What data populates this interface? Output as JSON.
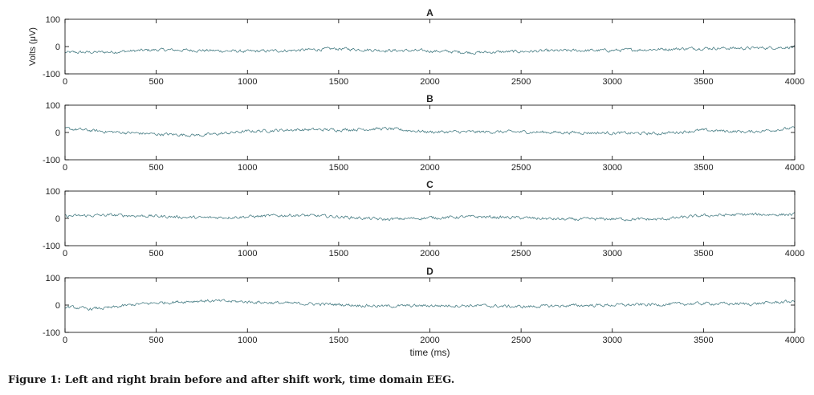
{
  "caption": "Figure 1: Left and right brain before and after shift work, time domain EEG.",
  "colors": {
    "trace": "#4a7f86",
    "axis": "#000000",
    "background": "#ffffff"
  },
  "chart_data": [
    {
      "type": "line",
      "title": "A",
      "xlabel": "",
      "ylabel": "Volts (μV)",
      "xlim": [
        0,
        4000
      ],
      "ylim": [
        -100,
        100
      ],
      "xticks": [
        0,
        500,
        1000,
        1500,
        2000,
        2500,
        3000,
        3500,
        4000
      ],
      "yticks": [
        -100,
        0,
        100
      ],
      "grid": false,
      "series": [
        {
          "x": [
            0,
            250,
            500,
            750,
            1000,
            1250,
            1500,
            1750,
            2000,
            2250,
            2500,
            2750,
            3000,
            3250,
            3500,
            3750,
            4000
          ],
          "y": [
            -22,
            -20,
            -12,
            -14,
            -18,
            -14,
            -8,
            -14,
            -16,
            -22,
            -18,
            -15,
            -14,
            -10,
            -6,
            -6,
            -2
          ]
        }
      ]
    },
    {
      "type": "line",
      "title": "B",
      "xlabel": "",
      "ylabel": "",
      "xlim": [
        0,
        4000
      ],
      "ylim": [
        -100,
        100
      ],
      "xticks": [
        0,
        500,
        1000,
        1500,
        2000,
        2500,
        3000,
        3500,
        4000
      ],
      "yticks": [
        -100,
        0,
        100
      ],
      "grid": false,
      "series": [
        {
          "x": [
            0,
            250,
            500,
            750,
            1000,
            1250,
            1500,
            1750,
            2000,
            2250,
            2500,
            2750,
            3000,
            3250,
            3500,
            3750,
            4000
          ],
          "y": [
            14,
            2,
            -6,
            -10,
            4,
            10,
            10,
            14,
            2,
            2,
            2,
            0,
            -2,
            -4,
            8,
            2,
            16
          ]
        }
      ]
    },
    {
      "type": "line",
      "title": "C",
      "xlabel": "",
      "ylabel": "",
      "xlim": [
        0,
        4000
      ],
      "ylim": [
        -100,
        100
      ],
      "xticks": [
        0,
        500,
        1000,
        1500,
        2000,
        2500,
        3000,
        3500,
        4000
      ],
      "yticks": [
        -100,
        0,
        100
      ],
      "grid": false,
      "series": [
        {
          "x": [
            0,
            250,
            500,
            750,
            1000,
            1250,
            1500,
            1750,
            2000,
            2250,
            2500,
            2750,
            3000,
            3250,
            3500,
            3750,
            4000
          ],
          "y": [
            8,
            12,
            8,
            2,
            6,
            12,
            6,
            -4,
            2,
            6,
            2,
            -4,
            -2,
            -4,
            10,
            14,
            14
          ]
        }
      ]
    },
    {
      "type": "line",
      "title": "D",
      "xlabel": "time (ms)",
      "ylabel": "",
      "xlim": [
        0,
        4000
      ],
      "ylim": [
        -100,
        100
      ],
      "xticks": [
        0,
        500,
        1000,
        1500,
        2000,
        2500,
        3000,
        3500,
        4000
      ],
      "yticks": [
        -100,
        0,
        100
      ],
      "grid": false,
      "series": [
        {
          "x": [
            0,
            125,
            250,
            375,
            500,
            750,
            1000,
            1250,
            1500,
            1750,
            2000,
            2250,
            2500,
            2750,
            3000,
            3250,
            3500,
            3750,
            4000
          ],
          "y": [
            -6,
            -14,
            -10,
            2,
            8,
            16,
            12,
            6,
            2,
            -4,
            -2,
            -2,
            -6,
            -2,
            0,
            2,
            6,
            4,
            14
          ]
        }
      ]
    }
  ]
}
